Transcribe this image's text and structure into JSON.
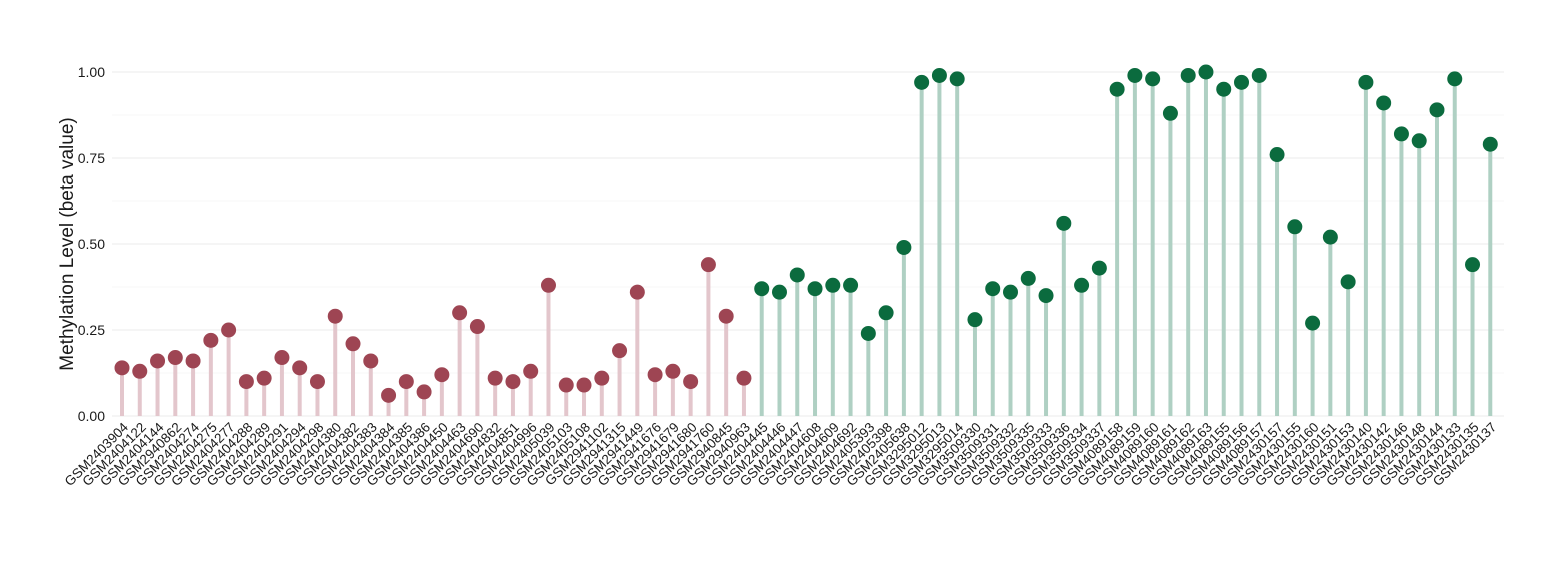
{
  "chart_data": {
    "type": "lollipop",
    "ylabel": "Methylation Level (beta value)",
    "xlabel": "",
    "ylim": [
      0,
      1.05
    ],
    "y_ticks": [
      0.0,
      0.25,
      0.5,
      0.75,
      1.0
    ],
    "y_tick_labels": [
      "0.00",
      "0.25",
      "0.50",
      "0.75",
      "1.00"
    ],
    "grid": true,
    "colors": {
      "group_a_point": "#9E4553",
      "group_a_stem": "#E3C6CC",
      "group_b_point": "#0B6B3E",
      "group_b_stem": "#AFD0C3",
      "grid": "#EEEEEE"
    },
    "series": [
      {
        "group": "a",
        "categories": [
          "GSM2403904",
          "GSM2404122",
          "GSM2404144",
          "GSM2940862",
          "GSM2404274",
          "GSM2404275",
          "GSM2404277",
          "GSM2404288",
          "GSM2404289",
          "GSM2404291",
          "GSM2404294",
          "GSM2404298",
          "GSM2404380",
          "GSM2404382",
          "GSM2404383",
          "GSM2404384",
          "GSM2404385",
          "GSM2404386",
          "GSM2404450",
          "GSM2404463",
          "GSM2404690",
          "GSM2404832",
          "GSM2404851",
          "GSM2404996",
          "GSM2405039",
          "GSM2405103",
          "GSM2405108",
          "GSM2941102",
          "GSM2941315",
          "GSM2941449",
          "GSM2941676",
          "GSM2941679",
          "GSM2941680",
          "GSM2941760",
          "GSM2940845",
          "GSM2940963"
        ],
        "values": [
          0.14,
          0.13,
          0.16,
          0.17,
          0.16,
          0.22,
          0.25,
          0.1,
          0.11,
          0.17,
          0.14,
          0.1,
          0.29,
          0.21,
          0.16,
          0.06,
          0.1,
          0.07,
          0.12,
          0.3,
          0.26,
          0.11,
          0.1,
          0.13,
          0.38,
          0.09,
          0.09,
          0.11,
          0.19,
          0.36,
          0.12,
          0.13,
          0.1,
          0.44,
          0.29,
          0.11
        ]
      },
      {
        "group": "b",
        "categories": [
          "GSM2404445",
          "GSM2404446",
          "GSM2404447",
          "GSM2404608",
          "GSM2404609",
          "GSM2404692",
          "GSM2405393",
          "GSM2405398",
          "GSM2405638",
          "GSM3295012",
          "GSM3295013",
          "GSM3295014",
          "GSM3509330",
          "GSM3509331",
          "GSM3509332",
          "GSM3509335",
          "GSM3509333",
          "GSM3509336",
          "GSM3509334",
          "GSM3509337",
          "GSM4089158",
          "GSM4089159",
          "GSM4089160",
          "GSM4089161",
          "GSM4089162",
          "GSM4089163",
          "GSM4089155",
          "GSM4089156",
          "GSM4089157",
          "GSM2430157",
          "GSM2430155",
          "GSM2430160",
          "GSM2430151",
          "GSM2430153",
          "GSM2430140",
          "GSM2430142",
          "GSM2430146",
          "GSM2430148",
          "GSM2430144",
          "GSM2430133",
          "GSM2430135",
          "GSM2430137"
        ],
        "values": [
          0.37,
          0.36,
          0.41,
          0.37,
          0.38,
          0.38,
          0.24,
          0.3,
          0.49,
          0.97,
          0.99,
          0.98,
          0.28,
          0.37,
          0.36,
          0.4,
          0.35,
          0.56,
          0.38,
          0.43,
          0.95,
          0.99,
          0.98,
          0.88,
          0.99,
          1.0,
          0.95,
          0.97,
          0.99,
          0.76,
          0.55,
          0.27,
          0.52,
          0.39,
          0.97,
          0.91,
          0.82,
          0.8,
          0.89,
          0.98,
          0.44,
          0.79
        ]
      }
    ]
  }
}
